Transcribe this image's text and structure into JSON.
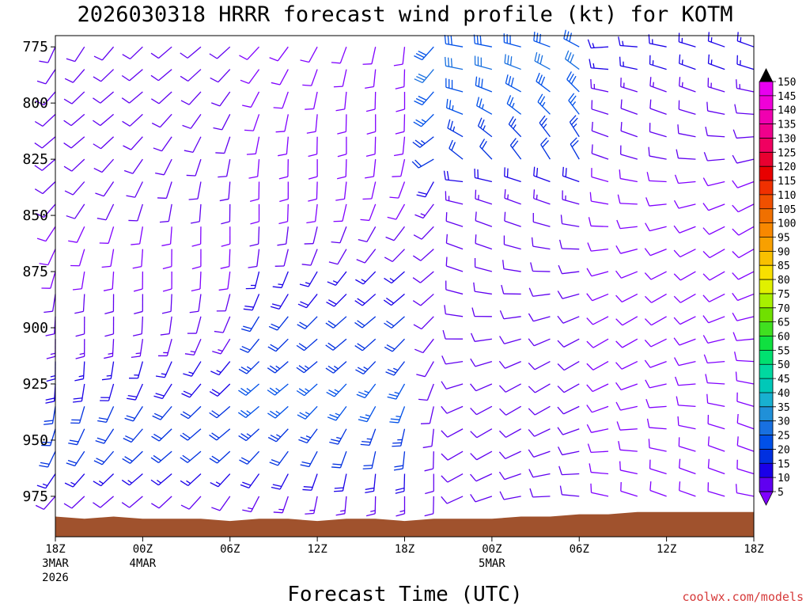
{
  "chart_data": {
    "type": "wind-barb-profile",
    "title": "2026030318 HRRR forecast wind profile (kt) for KOTM",
    "xlabel": "Forecast Time (UTC)",
    "ylabel": "",
    "y_axis": {
      "unit": "hPa",
      "range": [
        770,
        993
      ],
      "ticks": [
        775,
        800,
        825,
        850,
        875,
        900,
        925,
        950,
        975
      ],
      "tick_labels": [
        "775",
        "800",
        "825",
        "850",
        "875",
        "900",
        "925",
        "950",
        "975"
      ]
    },
    "x_axis": {
      "unit": "forecast hour",
      "range": [
        0,
        48
      ],
      "ticks": [
        {
          "hour": 0,
          "label": "18Z",
          "sub": [
            "3MAR",
            "2026"
          ]
        },
        {
          "hour": 6,
          "label": "00Z",
          "sub": [
            "4MAR"
          ]
        },
        {
          "hour": 12,
          "label": "06Z",
          "sub": []
        },
        {
          "hour": 18,
          "label": "12Z",
          "sub": []
        },
        {
          "hour": 24,
          "label": "18Z",
          "sub": []
        },
        {
          "hour": 30,
          "label": "00Z",
          "sub": [
            "5MAR"
          ]
        },
        {
          "hour": 36,
          "label": "06Z",
          "sub": []
        },
        {
          "hour": 42,
          "label": "12Z",
          "sub": []
        },
        {
          "hour": 48,
          "label": "18Z",
          "sub": []
        }
      ]
    },
    "levels_hpa": [
      775,
      785,
      795,
      805,
      815,
      825,
      835,
      845,
      855,
      865,
      875,
      885,
      895,
      905,
      915,
      925,
      935,
      945,
      955,
      965,
      975
    ],
    "hours": [
      0,
      2,
      4,
      6,
      8,
      10,
      12,
      14,
      16,
      18,
      20,
      22,
      24,
      26,
      28,
      30,
      32,
      34,
      36,
      38,
      40,
      42,
      44,
      46,
      48
    ],
    "surface_pressure_hpa": [
      984,
      985,
      984,
      985,
      985,
      985,
      986,
      985,
      985,
      986,
      985,
      985,
      986,
      985,
      985,
      985,
      984,
      984,
      983,
      983,
      982,
      982,
      982,
      982,
      982
    ],
    "wind_kt": {
      "description": "Estimated wind speed (kt) by level, segments from 775 hPa down; columns by forecast hour",
      "hour_0_to_12": [
        10,
        10,
        10,
        10,
        10,
        10,
        10,
        10,
        8,
        8,
        8,
        10,
        12,
        14,
        16,
        18,
        20,
        20,
        20,
        16,
        12
      ],
      "hour_14_to_24": [
        8,
        8,
        8,
        8,
        8,
        8,
        8,
        8,
        10,
        12,
        15,
        18,
        20,
        22,
        24,
        25,
        25,
        24,
        22,
        18,
        14
      ],
      "hour_26_to_36": [
        28,
        30,
        28,
        26,
        24,
        22,
        18,
        14,
        12,
        10,
        10,
        10,
        10,
        10,
        10,
        10,
        10,
        10,
        10,
        10,
        10
      ],
      "hour_38_to_48": [
        15,
        15,
        14,
        12,
        12,
        10,
        8,
        8,
        8,
        8,
        8,
        8,
        8,
        8,
        8,
        8,
        8,
        8,
        8,
        8,
        8
      ]
    },
    "colorbar": {
      "values": [
        5,
        10,
        15,
        20,
        25,
        30,
        35,
        40,
        45,
        50,
        55,
        60,
        65,
        70,
        75,
        80,
        85,
        90,
        95,
        100,
        105,
        110,
        115,
        120,
        125,
        130,
        135,
        140,
        145,
        150
      ],
      "labels": [
        "5",
        "10",
        "15",
        "20",
        "25",
        "30",
        "35",
        "40",
        "45",
        "50",
        "55",
        "60",
        "65",
        "70",
        "75",
        "80",
        "85",
        "90",
        "95",
        "100",
        "105",
        "110",
        "115",
        "120",
        "125",
        "130",
        "135",
        "140",
        "145",
        "150"
      ],
      "colors": [
        "#8000ff",
        "#6000f0",
        "#1a00e8",
        "#0030e0",
        "#0050e8",
        "#1870e0",
        "#2090d8",
        "#18b0d0",
        "#00c8b8",
        "#00d8a0",
        "#00e070",
        "#10e040",
        "#40e020",
        "#70e000",
        "#a8f000",
        "#e0f000",
        "#f8e000",
        "#f8c000",
        "#f8a000",
        "#f88800",
        "#f07000",
        "#f05000",
        "#f03000",
        "#e80000",
        "#e80030",
        "#f00060",
        "#f0008c",
        "#f000b0",
        "#f000d8",
        "#e800f0"
      ]
    },
    "terrain_color": "#a0522d"
  },
  "credit": "coolwx.com/models"
}
